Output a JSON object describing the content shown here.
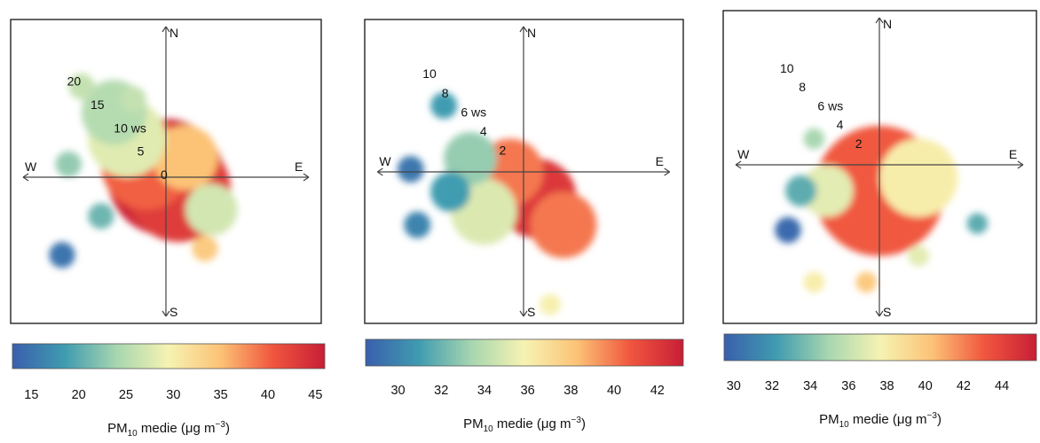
{
  "chart_data": [
    {
      "type": "heatmap",
      "subtype": "polar-plot",
      "directions": {
        "n": "N",
        "s": "S",
        "e": "E",
        "w": "W"
      },
      "ring_labels": [
        {
          "text": "0",
          "ws": 0
        },
        {
          "text": "5",
          "ws": 5
        },
        {
          "text": "10 ws",
          "ws": 10
        },
        {
          "text": "15",
          "ws": 15
        },
        {
          "text": "20",
          "ws": 20
        }
      ],
      "max_ws": 22,
      "colorbar": {
        "min": 13,
        "max": 46,
        "ticks": [
          "15",
          "20",
          "25",
          "30",
          "35",
          "40",
          "45"
        ],
        "tick_values": [
          15,
          20,
          25,
          30,
          35,
          40,
          45
        ]
      },
      "colorbar_label": {
        "main": "PM",
        "sub": "10",
        "rest": " medie (μg m",
        "sup": "−3",
        "close": ")"
      },
      "colors": [
        "#3a5fad",
        "#3f9bb0",
        "#a7d6b0",
        "#f6f3b2",
        "#fcc276",
        "#f0563e",
        "#c81e36"
      ],
      "cells": [
        {
          "u": 0,
          "v": 0,
          "value": 45,
          "r": 9
        },
        {
          "u": 2,
          "v": -2,
          "value": 43,
          "r": 8
        },
        {
          "u": -3,
          "v": 2,
          "value": 40,
          "r": 7
        },
        {
          "u": 3,
          "v": 3,
          "value": 35,
          "r": 5
        },
        {
          "u": -6,
          "v": 6,
          "value": 28,
          "r": 6
        },
        {
          "u": -8,
          "v": 10,
          "value": 25,
          "r": 5
        },
        {
          "u": -13,
          "v": 14,
          "value": 26,
          "r": 2
        },
        {
          "u": -5,
          "v": 12,
          "value": 26,
          "r": 2
        },
        {
          "u": 7,
          "v": -5,
          "value": 27,
          "r": 4
        },
        {
          "u": 6,
          "v": -11,
          "value": 34,
          "r": 2
        },
        {
          "u": -10,
          "v": -6,
          "value": 21,
          "r": 2
        },
        {
          "u": -15,
          "v": 2,
          "value": 23,
          "r": 2
        },
        {
          "u": -16,
          "v": -12,
          "value": 15,
          "r": 2
        }
      ]
    },
    {
      "type": "heatmap",
      "subtype": "polar-plot",
      "directions": {
        "n": "N",
        "s": "S",
        "e": "E",
        "w": "W"
      },
      "ring_labels": [
        {
          "text": "2",
          "ws": 2
        },
        {
          "text": "4",
          "ws": 4
        },
        {
          "text": "6 ws",
          "ws": 6
        },
        {
          "text": "8",
          "ws": 8
        },
        {
          "text": "10",
          "ws": 10
        }
      ],
      "max_ws": 11,
      "colorbar": {
        "min": 28.5,
        "max": 43.2,
        "ticks": [
          "30",
          "32",
          "34",
          "36",
          "38",
          "40",
          "42"
        ],
        "tick_values": [
          30,
          32,
          34,
          36,
          38,
          40,
          42
        ]
      },
      "colorbar_label": {
        "main": "PM",
        "sub": "10",
        "rest": " medie (μg m",
        "sup": "−3",
        "close": ")"
      },
      "colors": [
        "#3a5fad",
        "#3f9bb0",
        "#a7d6b0",
        "#f6f3b2",
        "#fcc276",
        "#f0563e",
        "#c81e36"
      ],
      "cells": [
        {
          "u": 1,
          "v": -2,
          "value": 42,
          "r": 3
        },
        {
          "u": 3,
          "v": -4,
          "value": 40,
          "r": 2.5
        },
        {
          "u": -1,
          "v": 0,
          "value": 40,
          "r": 2.5
        },
        {
          "u": -3,
          "v": -3,
          "value": 35,
          "r": 2.5
        },
        {
          "u": -4,
          "v": 1,
          "value": 33,
          "r": 2
        },
        {
          "u": -5.5,
          "v": -1.5,
          "value": 31,
          "r": 1.5
        },
        {
          "u": -8.5,
          "v": 0.2,
          "value": 29.5,
          "r": 1
        },
        {
          "u": -6,
          "v": 5,
          "value": 31,
          "r": 1
        },
        {
          "u": -8,
          "v": -4,
          "value": 30,
          "r": 1
        },
        {
          "u": 2,
          "v": -10,
          "value": 36,
          "r": 0.8
        }
      ]
    },
    {
      "type": "heatmap",
      "subtype": "polar-plot",
      "directions": {
        "n": "N",
        "s": "S",
        "e": "E",
        "w": "W"
      },
      "ring_labels": [
        {
          "text": "2",
          "ws": 2
        },
        {
          "text": "4",
          "ws": 4
        },
        {
          "text": "6 ws",
          "ws": 6
        },
        {
          "text": "8",
          "ws": 8
        },
        {
          "text": "10",
          "ws": 10
        }
      ],
      "max_ws": 11,
      "colorbar": {
        "min": 29.5,
        "max": 45.8,
        "ticks": [
          "30",
          "32",
          "34",
          "36",
          "38",
          "40",
          "42",
          "44"
        ],
        "tick_values": [
          30,
          32,
          34,
          36,
          38,
          40,
          42,
          44
        ]
      },
      "colorbar_label": {
        "main": "PM",
        "sub": "10",
        "rest": " medie (μg m",
        "sup": "−3",
        "close": ")"
      },
      "colors": [
        "#3a5fad",
        "#3f9bb0",
        "#a7d6b0",
        "#f6f3b2",
        "#fcc276",
        "#f0563e",
        "#c81e36"
      ],
      "cells": [
        {
          "u": 0,
          "v": -3,
          "value": 45,
          "r": 3.5
        },
        {
          "u": 0,
          "v": -2,
          "value": 43,
          "r": 5
        },
        {
          "u": 3,
          "v": -1,
          "value": 38,
          "r": 3
        },
        {
          "u": -4,
          "v": -2,
          "value": 37,
          "r": 2
        },
        {
          "u": -6,
          "v": -2,
          "value": 33,
          "r": 1.2
        },
        {
          "u": -7,
          "v": -5,
          "value": 30,
          "r": 1
        },
        {
          "u": -5,
          "v": 2,
          "value": 35,
          "r": 0.8
        },
        {
          "u": 7.5,
          "v": -4.5,
          "value": 33,
          "r": 0.8
        },
        {
          "u": -5,
          "v": -9,
          "value": 38,
          "r": 0.8
        },
        {
          "u": 3,
          "v": -7,
          "value": 37,
          "r": 0.8
        },
        {
          "u": -1,
          "v": -9,
          "value": 40,
          "r": 0.8
        }
      ]
    }
  ]
}
